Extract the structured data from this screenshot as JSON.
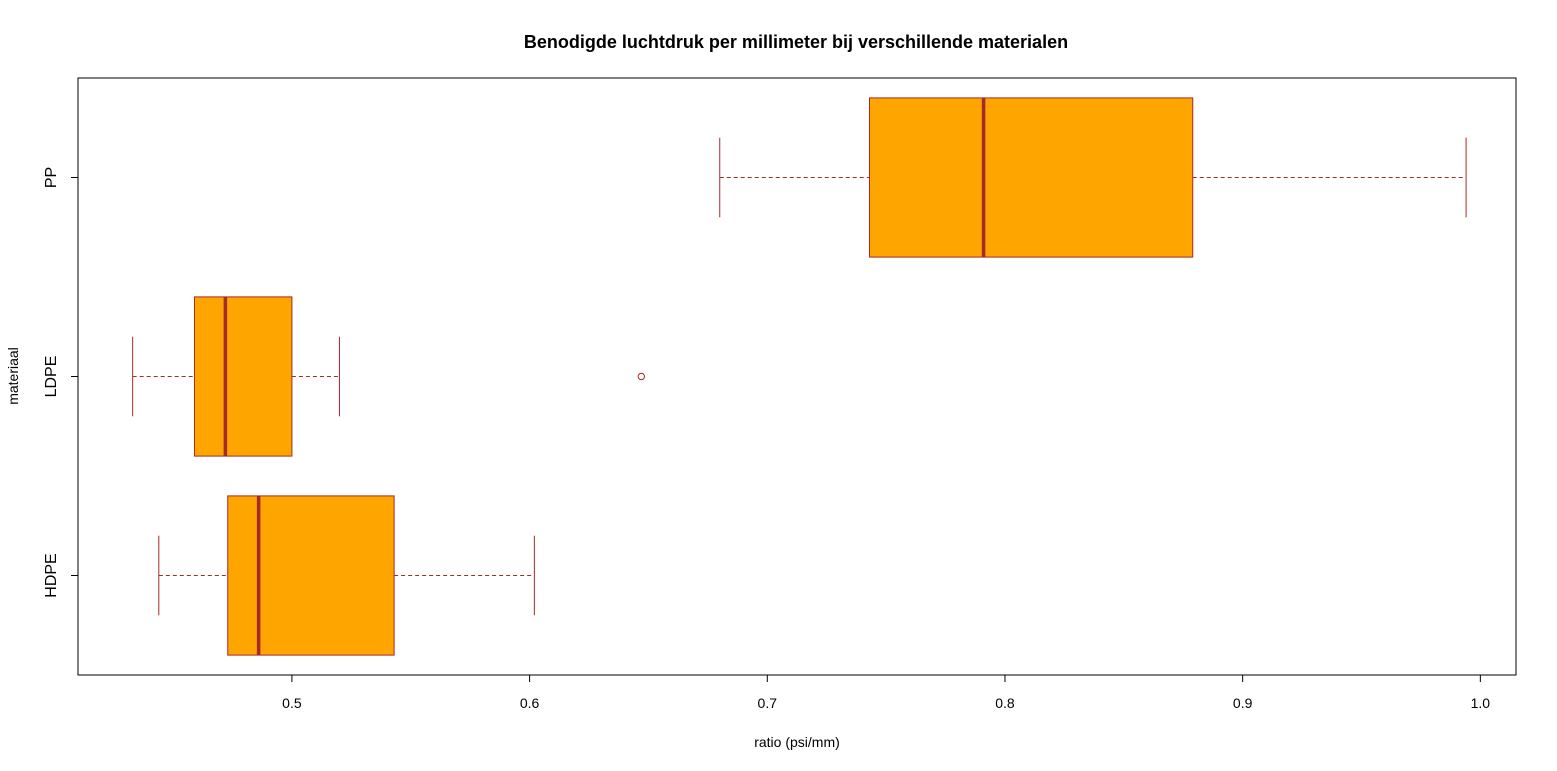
{
  "chart_data": {
    "type": "boxplot",
    "orientation": "horizontal",
    "title": "Benodigde luchtdruk per millimeter bij verschillende materialen",
    "xlabel": "ratio (psi/mm)",
    "ylabel": "materiaal",
    "xlim": [
      0.41,
      1.015
    ],
    "xticks": [
      0.5,
      0.6,
      0.7,
      0.8,
      0.9,
      1.0
    ],
    "xtick_labels": [
      "0.5",
      "0.6",
      "0.7",
      "0.8",
      "0.9",
      "1.0"
    ],
    "categories": [
      "HDPE",
      "LDPE",
      "PP"
    ],
    "box_fill": "#FFA500",
    "box_border": "#A52A2A",
    "grid": false,
    "legend": "none",
    "boxes": [
      {
        "category": "HDPE",
        "whisker_low": 0.444,
        "q1": 0.473,
        "median": 0.486,
        "q3": 0.543,
        "whisker_high": 0.602,
        "outliers": []
      },
      {
        "category": "LDPE",
        "whisker_low": 0.433,
        "q1": 0.459,
        "median": 0.472,
        "q3": 0.5,
        "whisker_high": 0.52,
        "outliers": [
          0.647
        ]
      },
      {
        "category": "PP",
        "whisker_low": 0.68,
        "q1": 0.743,
        "median": 0.791,
        "q3": 0.879,
        "whisker_high": 0.994,
        "outliers": []
      }
    ]
  }
}
